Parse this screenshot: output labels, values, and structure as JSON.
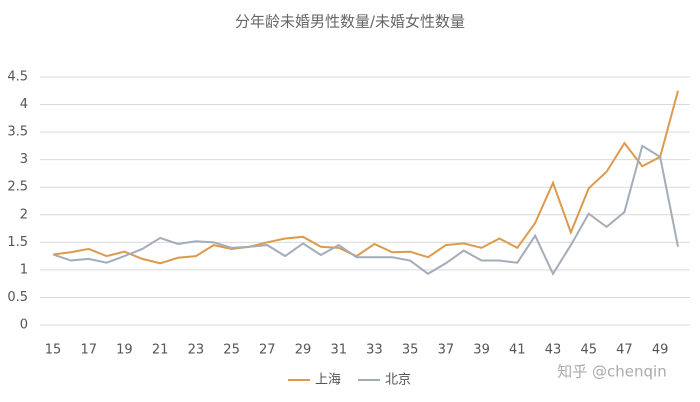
{
  "chart_data": {
    "type": "line",
    "title": "分年龄未婚男性数量/未婚女性数量",
    "x": [
      15,
      16,
      17,
      18,
      19,
      20,
      21,
      22,
      23,
      24,
      25,
      26,
      27,
      28,
      29,
      30,
      31,
      32,
      33,
      34,
      35,
      36,
      37,
      38,
      39,
      40,
      41,
      42,
      43,
      44,
      45,
      46,
      47,
      48,
      49,
      50
    ],
    "xlim": [
      15,
      50
    ],
    "xticks": [
      15,
      17,
      19,
      21,
      23,
      25,
      27,
      29,
      31,
      33,
      35,
      37,
      39,
      41,
      43,
      45,
      47,
      49
    ],
    "ylim": [
      0,
      4.5
    ],
    "yticks": [
      0,
      0.5,
      1,
      1.5,
      2,
      2.5,
      3,
      3.5,
      4,
      4.5
    ],
    "grid": true,
    "legend": "bottom",
    "series": [
      {
        "name": "上海",
        "color": "#dc9a4c",
        "values": [
          1.28,
          1.32,
          1.38,
          1.25,
          1.33,
          1.2,
          1.12,
          1.22,
          1.25,
          1.45,
          1.38,
          1.42,
          1.5,
          1.57,
          1.6,
          1.42,
          1.4,
          1.25,
          1.47,
          1.32,
          1.33,
          1.23,
          1.45,
          1.48,
          1.4,
          1.57,
          1.4,
          1.85,
          2.58,
          1.68,
          2.48,
          2.78,
          3.3,
          2.88,
          3.05,
          4.25
        ]
      },
      {
        "name": "北京",
        "color": "#a3acb9",
        "values": [
          1.28,
          1.17,
          1.2,
          1.13,
          1.25,
          1.38,
          1.58,
          1.47,
          1.52,
          1.5,
          1.4,
          1.42,
          1.45,
          1.25,
          1.48,
          1.27,
          1.45,
          1.23,
          1.23,
          1.23,
          1.17,
          0.93,
          1.12,
          1.35,
          1.17,
          1.17,
          1.13,
          1.62,
          0.93,
          1.45,
          2.02,
          1.78,
          2.05,
          3.25,
          3.05,
          1.42
        ]
      }
    ],
    "watermark": "知乎 @chenqin"
  }
}
